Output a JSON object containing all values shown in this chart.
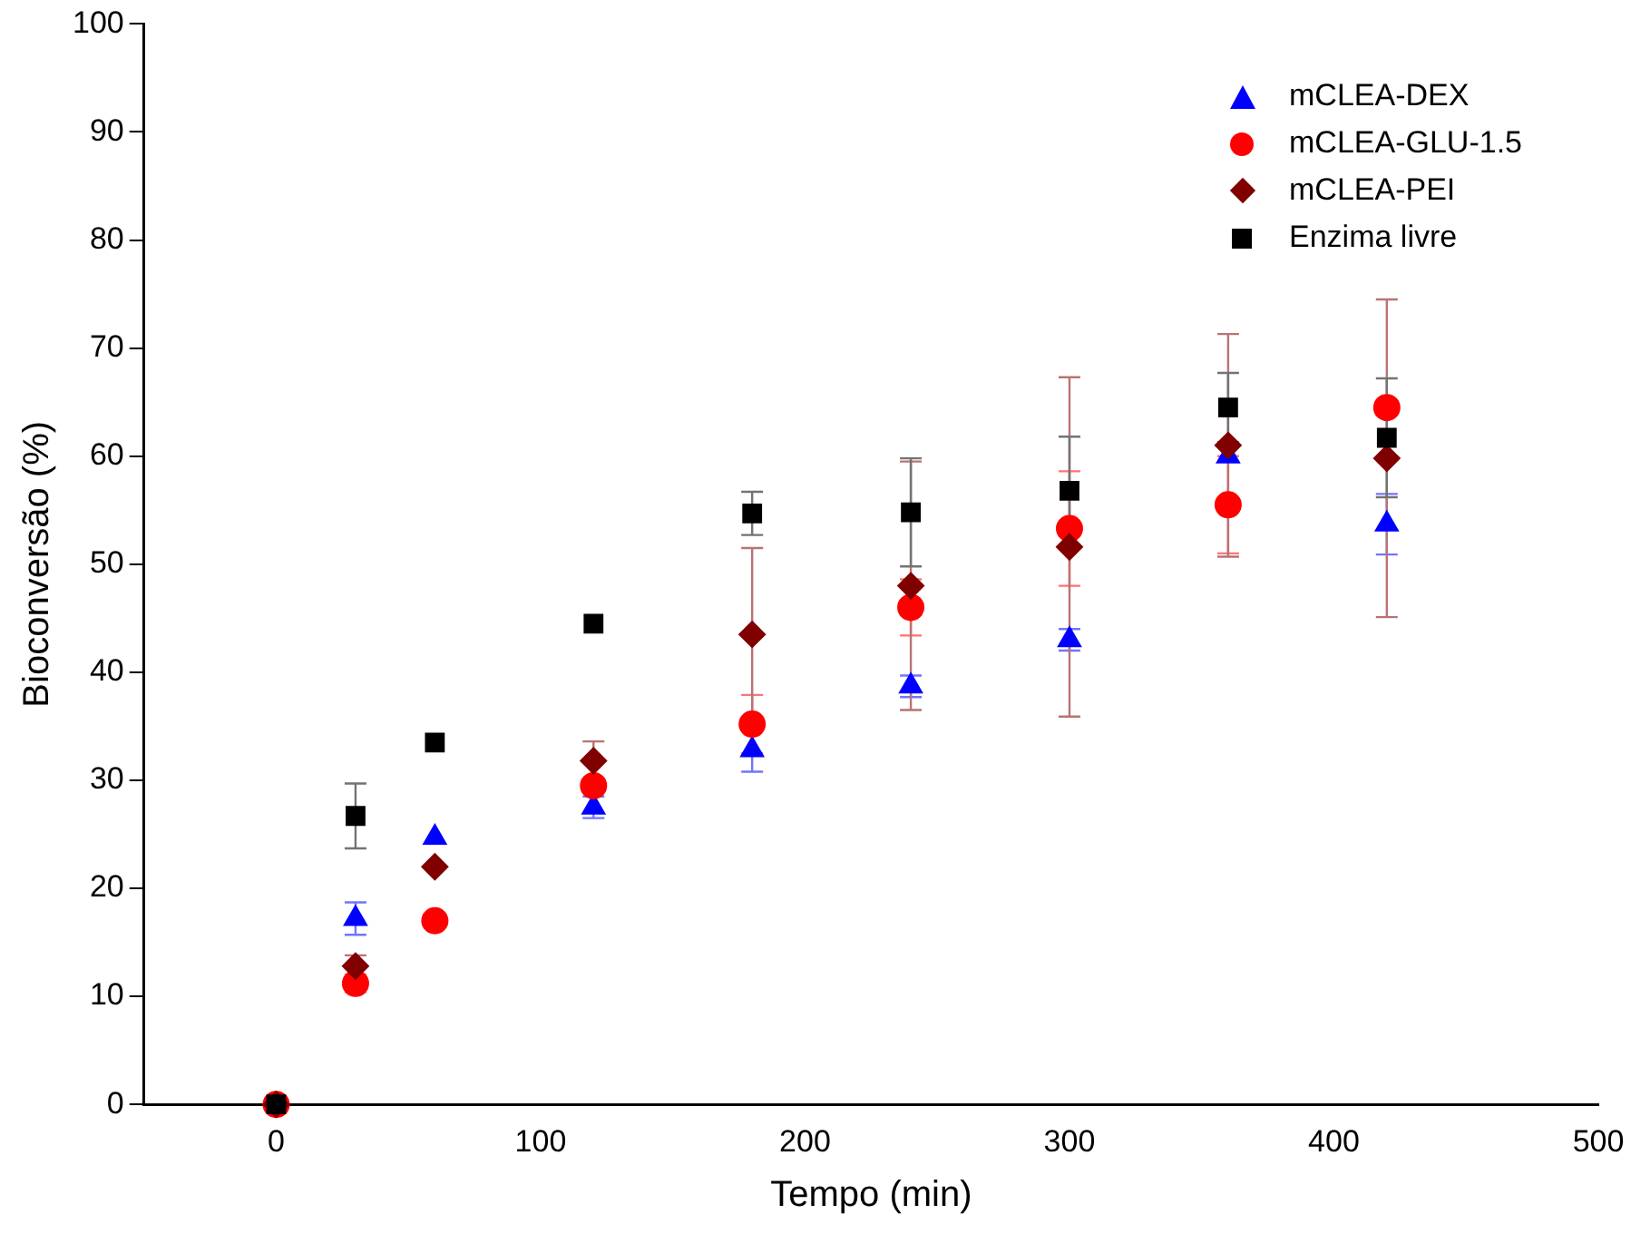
{
  "chart_data": {
    "type": "scatter",
    "xlabel": "Tempo (min)",
    "ylabel": "Bioconversão (%)",
    "xlim": [
      -50,
      500
    ],
    "xticks": [
      0,
      100,
      200,
      300,
      400,
      500
    ],
    "ylim": [
      0,
      100
    ],
    "yticks": [
      0,
      10,
      20,
      30,
      40,
      50,
      60,
      70,
      80,
      90,
      100
    ],
    "grid": false,
    "legend": "top right",
    "x": [
      0,
      30,
      60,
      120,
      180,
      240,
      300,
      360,
      420
    ],
    "series": [
      {
        "name": "mCLEA-DEX",
        "color": "#0000ff",
        "marker": "triangle",
        "values": [
          null,
          17.2,
          24.7,
          27.5,
          32.8,
          38.7,
          43,
          60,
          53.7
        ],
        "errors": [
          null,
          1.5,
          null,
          1,
          2,
          1,
          1,
          null,
          2.8
        ]
      },
      {
        "name": "mCLEA-GLU-1.5",
        "color": "#ff0000",
        "marker": "circle",
        "values": [
          0,
          11.2,
          17,
          29.5,
          35.2,
          46,
          53.3,
          55.5,
          64.5
        ],
        "errors": [
          null,
          0.8,
          null,
          null,
          2.7,
          2.6,
          5.3,
          4.5,
          null
        ]
      },
      {
        "name": "mCLEA-PEI",
        "color": "#800000",
        "marker": "diamond",
        "values": [
          0,
          12.8,
          22,
          31.8,
          43.5,
          48,
          51.6,
          61,
          59.8
        ],
        "errors": [
          null,
          1,
          null,
          1.8,
          8,
          11.5,
          15.7,
          10.3,
          14.7
        ]
      },
      {
        "name": "Enzima livre",
        "color": "#000000",
        "marker": "square",
        "values": [
          0,
          26.7,
          33.5,
          44.5,
          54.7,
          54.8,
          56.8,
          64.5,
          61.7
        ],
        "errors": [
          null,
          3,
          null,
          null,
          2,
          5,
          5,
          3.2,
          5.5
        ]
      }
    ]
  }
}
